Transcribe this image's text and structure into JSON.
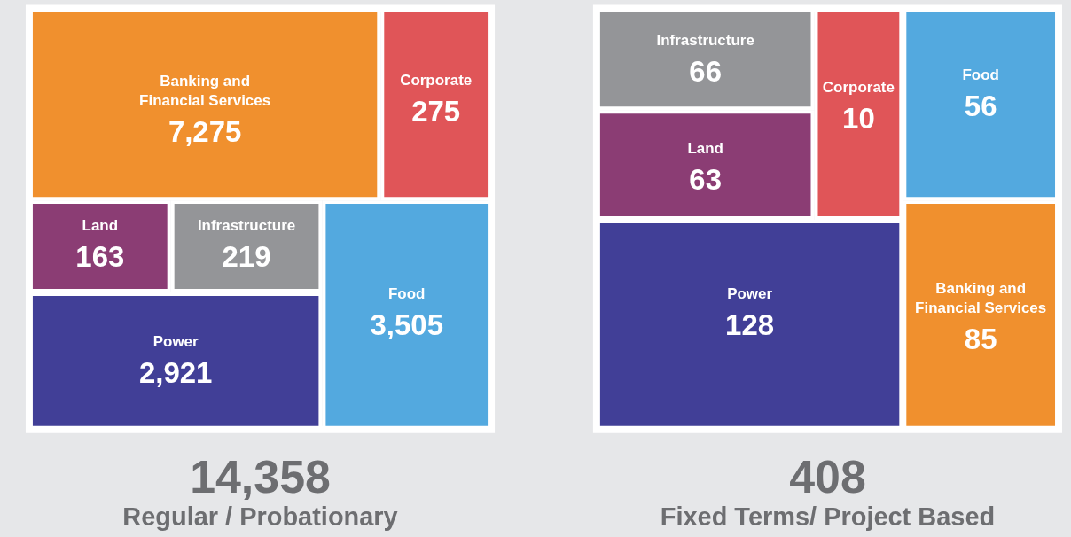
{
  "chart_data": [
    {
      "type": "other",
      "title": "14,358",
      "subtitle": "Regular / Probationary",
      "categories": [
        "Banking and Financial Services",
        "Corporate",
        "Land",
        "Infrastructure",
        "Food",
        "Power"
      ],
      "values": [
        7275,
        275,
        163,
        219,
        3505,
        2921
      ],
      "value_labels": [
        "7,275",
        "275",
        "163",
        "219",
        "3,505",
        "2,921"
      ],
      "colors": [
        "#f0902e",
        "#e05558",
        "#8b3d74",
        "#949598",
        "#53a9df",
        "#413f97"
      ]
    },
    {
      "type": "other",
      "title": "408",
      "subtitle": "Fixed Terms/ Project Based",
      "categories": [
        "Infrastructure",
        "Corporate",
        "Food",
        "Land",
        "Banking and Financial Services",
        "Power"
      ],
      "values": [
        66,
        10,
        56,
        63,
        85,
        128
      ],
      "colors": [
        "#949598",
        "#e05558",
        "#53a9df",
        "#8b3d74",
        "#f0902e",
        "#413f97"
      ],
      "data_labels": true
    }
  ]
}
